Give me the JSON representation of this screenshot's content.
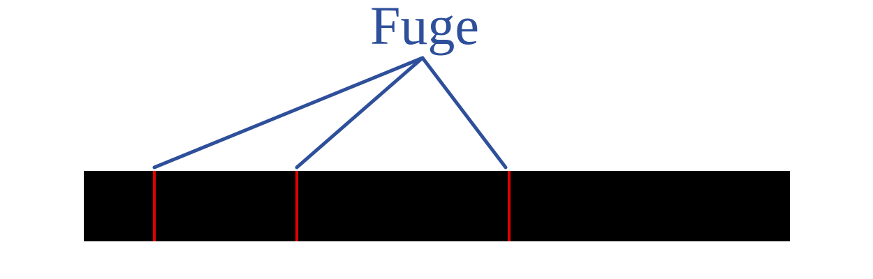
{
  "label": {
    "text": "Fuge"
  },
  "joint_count": 3,
  "colors": {
    "label": "#2E4F9A",
    "leader_lines": "#2E4F9A",
    "bar": "#000000",
    "joints": "#E00000",
    "background": "#FFFFFF"
  }
}
